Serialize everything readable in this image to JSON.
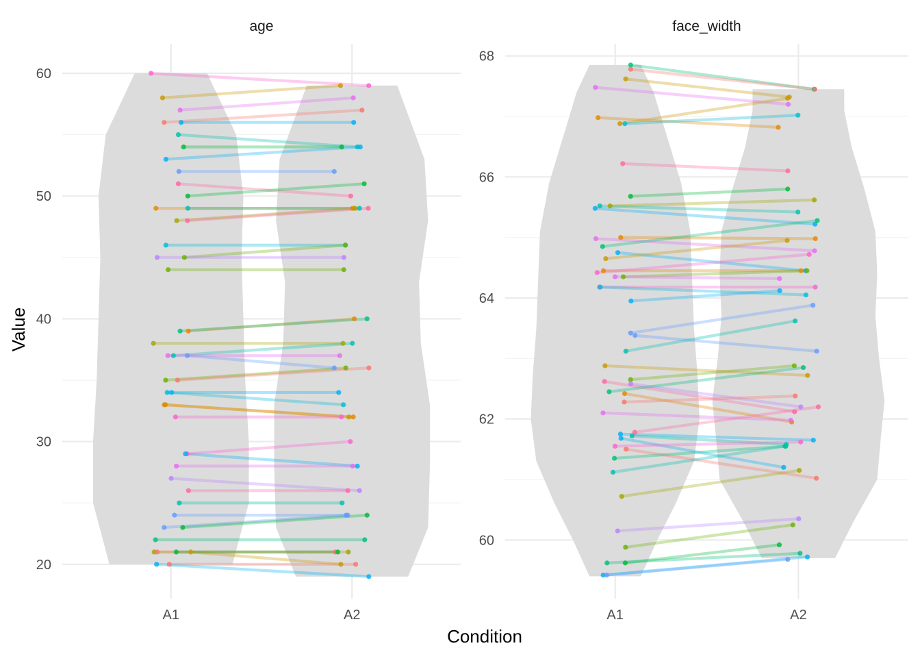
{
  "chart_data": {
    "type": "violin-paired-scatter",
    "xlabel": "Condition",
    "ylabel": "Value",
    "categories": [
      "A1",
      "A2"
    ],
    "palette": [
      "#F8766D",
      "#E58700",
      "#C99800",
      "#A3A500",
      "#6BB100",
      "#00BA38",
      "#00BF7D",
      "#00C0AF",
      "#00BCD8",
      "#00B0F6",
      "#619CFF",
      "#B983FF",
      "#E76BF3",
      "#FD61D1",
      "#FF67A4"
    ],
    "panels": [
      {
        "title": "age",
        "ylim": [
          17.2,
          62.4
        ],
        "yticks": [
          20,
          30,
          40,
          50,
          60
        ],
        "violins": [
          {
            "condition": "A1",
            "y": [
              20,
              25,
              30,
              35,
              40,
              45,
              50,
              55,
              60
            ],
            "half_width": [
              0.34,
              0.43,
              0.43,
              0.41,
              0.4,
              0.39,
              0.4,
              0.36,
              0.2
            ]
          },
          {
            "condition": "A2",
            "y": [
              19,
              23,
              28,
              33,
              38,
              43,
              48,
              53,
              59
            ],
            "half_width": [
              0.31,
              0.42,
              0.43,
              0.43,
              0.38,
              0.37,
              0.42,
              0.4,
              0.25
            ]
          }
        ],
        "pairs": [
          {
            "a1": 60,
            "a2": 59,
            "color": 13
          },
          {
            "a1": 58,
            "a2": 59,
            "color": 2
          },
          {
            "a1": 57,
            "a2": 58,
            "color": 12
          },
          {
            "a1": 56,
            "a2": 57,
            "color": 0
          },
          {
            "a1": 56,
            "a2": 56,
            "color": 9
          },
          {
            "a1": 55,
            "a2": 54,
            "color": 7
          },
          {
            "a1": 54,
            "a2": 54,
            "color": 5
          },
          {
            "a1": 53,
            "a2": 54,
            "color": 9
          },
          {
            "a1": 52,
            "a2": 52,
            "color": 10
          },
          {
            "a1": 51,
            "a2": 50,
            "color": 14
          },
          {
            "a1": 50,
            "a2": 51,
            "color": 5
          },
          {
            "a1": 49,
            "a2": 49,
            "color": 1
          },
          {
            "a1": 49,
            "a2": 49,
            "color": 7
          },
          {
            "a1": 48,
            "a2": 49,
            "color": 3
          },
          {
            "a1": 48,
            "a2": 49,
            "color": 14
          },
          {
            "a1": 46,
            "a2": 46,
            "color": 8
          },
          {
            "a1": 45,
            "a2": 46,
            "color": 4
          },
          {
            "a1": 45,
            "a2": 45,
            "color": 11
          },
          {
            "a1": 44,
            "a2": 44,
            "color": 4
          },
          {
            "a1": 39,
            "a2": 40,
            "color": 1
          },
          {
            "a1": 39,
            "a2": 40,
            "color": 6
          },
          {
            "a1": 38,
            "a2": 38,
            "color": 3
          },
          {
            "a1": 37,
            "a2": 38,
            "color": 7
          },
          {
            "a1": 37,
            "a2": 37,
            "color": 12
          },
          {
            "a1": 37,
            "a2": 36,
            "color": 10
          },
          {
            "a1": 35,
            "a2": 36,
            "color": 4
          },
          {
            "a1": 35,
            "a2": 36,
            "color": 15
          },
          {
            "a1": 34,
            "a2": 34,
            "color": 9
          },
          {
            "a1": 34,
            "a2": 33,
            "color": 8
          },
          {
            "a1": 33,
            "a2": 32,
            "color": 2
          },
          {
            "a1": 33,
            "a2": 32,
            "color": 1
          },
          {
            "a1": 32,
            "a2": 32,
            "color": 13
          },
          {
            "a1": 29,
            "a2": 30,
            "color": 13
          },
          {
            "a1": 29,
            "a2": 28,
            "color": 9
          },
          {
            "a1": 28,
            "a2": 28,
            "color": 12
          },
          {
            "a1": 27,
            "a2": 26,
            "color": 11
          },
          {
            "a1": 26,
            "a2": 26,
            "color": 14
          },
          {
            "a1": 25,
            "a2": 25,
            "color": 7
          },
          {
            "a1": 24,
            "a2": 24,
            "color": 10
          },
          {
            "a1": 23,
            "a2": 24,
            "color": 10
          },
          {
            "a1": 23,
            "a2": 24,
            "color": 5
          },
          {
            "a1": 22,
            "a2": 22,
            "color": 6
          },
          {
            "a1": 21,
            "a2": 21,
            "color": 3
          },
          {
            "a1": 21,
            "a2": 21,
            "color": 0
          },
          {
            "a1": 21,
            "a2": 20,
            "color": 2
          },
          {
            "a1": 21,
            "a2": 21,
            "color": 5
          },
          {
            "a1": 20,
            "a2": 20,
            "color": 0
          },
          {
            "a1": 20,
            "a2": 19,
            "color": 9
          }
        ]
      },
      {
        "title": "face_width",
        "ylim": [
          59.03,
          68.2
        ],
        "yticks": [
          60,
          62,
          64,
          66,
          68
        ],
        "violins": [
          {
            "condition": "A1",
            "y": [
              59.4,
              60.0,
              60.6,
              61.3,
              62.0,
              62.7,
              63.5,
              64.3,
              65.1,
              65.9,
              66.7,
              67.4,
              67.85
            ],
            "half_width": [
              0.14,
              0.23,
              0.33,
              0.43,
              0.46,
              0.45,
              0.43,
              0.42,
              0.41,
              0.36,
              0.28,
              0.21,
              0.14
            ]
          },
          {
            "condition": "A2",
            "y": [
              59.7,
              60.3,
              61.0,
              61.7,
              62.3,
              63.0,
              63.7,
              64.4,
              65.1,
              65.8,
              66.5,
              67.1,
              67.45
            ],
            "half_width": [
              0.2,
              0.3,
              0.43,
              0.45,
              0.47,
              0.44,
              0.42,
              0.43,
              0.42,
              0.36,
              0.29,
              0.25,
              0.25
            ]
          }
        ],
        "pairs": [
          {
            "a1": 67.85,
            "a2": 67.45,
            "color": 6
          },
          {
            "a1": 67.78,
            "a2": 67.45,
            "color": 0
          },
          {
            "a1": 67.62,
            "a2": 67.32,
            "color": 2
          },
          {
            "a1": 67.48,
            "a2": 67.2,
            "color": 12
          },
          {
            "a1": 66.98,
            "a2": 66.82,
            "color": 1
          },
          {
            "a1": 66.88,
            "a2": 67.3,
            "color": 2
          },
          {
            "a1": 66.88,
            "a2": 67.02,
            "color": 8
          },
          {
            "a1": 66.22,
            "a2": 66.1,
            "color": 14
          },
          {
            "a1": 65.68,
            "a2": 65.8,
            "color": 5
          },
          {
            "a1": 65.52,
            "a2": 65.62,
            "color": 3
          },
          {
            "a1": 65.52,
            "a2": 65.42,
            "color": 7
          },
          {
            "a1": 65.48,
            "a2": 65.22,
            "color": 9
          },
          {
            "a1": 65.0,
            "a2": 64.98,
            "color": 1
          },
          {
            "a1": 64.98,
            "a2": 64.78,
            "color": 12
          },
          {
            "a1": 64.85,
            "a2": 65.28,
            "color": 6
          },
          {
            "a1": 64.75,
            "a2": 64.45,
            "color": 9
          },
          {
            "a1": 64.65,
            "a2": 64.95,
            "color": 2
          },
          {
            "a1": 64.45,
            "a2": 64.45,
            "color": 1
          },
          {
            "a1": 64.42,
            "a2": 64.72,
            "color": 13
          },
          {
            "a1": 64.35,
            "a2": 64.45,
            "color": 4
          },
          {
            "a1": 64.35,
            "a2": 64.32,
            "color": 12
          },
          {
            "a1": 64.18,
            "a2": 64.18,
            "color": 13
          },
          {
            "a1": 64.18,
            "a2": 64.05,
            "color": 8
          },
          {
            "a1": 63.95,
            "a2": 64.12,
            "color": 9
          },
          {
            "a1": 63.42,
            "a2": 63.88,
            "color": 10
          },
          {
            "a1": 63.38,
            "a2": 63.12,
            "color": 10
          },
          {
            "a1": 63.12,
            "a2": 63.62,
            "color": 7
          },
          {
            "a1": 62.88,
            "a2": 62.72,
            "color": 2
          },
          {
            "a1": 62.65,
            "a2": 62.88,
            "color": 4
          },
          {
            "a1": 62.62,
            "a2": 62.12,
            "color": 14
          },
          {
            "a1": 62.58,
            "a2": 62.2,
            "color": 11
          },
          {
            "a1": 62.45,
            "a2": 62.85,
            "color": 6
          },
          {
            "a1": 62.42,
            "a2": 61.95,
            "color": 1
          },
          {
            "a1": 62.28,
            "a2": 62.38,
            "color": 0
          },
          {
            "a1": 62.1,
            "a2": 61.98,
            "color": 12
          },
          {
            "a1": 61.78,
            "a2": 62.2,
            "color": 14
          },
          {
            "a1": 61.75,
            "a2": 61.65,
            "color": 9
          },
          {
            "a1": 61.72,
            "a2": 61.58,
            "color": 7
          },
          {
            "a1": 61.68,
            "a2": 61.2,
            "color": 9
          },
          {
            "a1": 61.55,
            "a2": 61.62,
            "color": 13
          },
          {
            "a1": 61.5,
            "a2": 61.02,
            "color": 0
          },
          {
            "a1": 61.35,
            "a2": 61.55,
            "color": 6
          },
          {
            "a1": 61.12,
            "a2": 61.55,
            "color": 7
          },
          {
            "a1": 60.72,
            "a2": 61.15,
            "color": 3
          },
          {
            "a1": 60.15,
            "a2": 60.35,
            "color": 11
          },
          {
            "a1": 59.88,
            "a2": 60.25,
            "color": 4
          },
          {
            "a1": 59.62,
            "a2": 59.92,
            "color": 5
          },
          {
            "a1": 59.62,
            "a2": 59.78,
            "color": 6
          },
          {
            "a1": 59.42,
            "a2": 59.72,
            "color": 9
          },
          {
            "a1": 59.42,
            "a2": 59.68,
            "color": 10
          }
        ]
      }
    ]
  }
}
